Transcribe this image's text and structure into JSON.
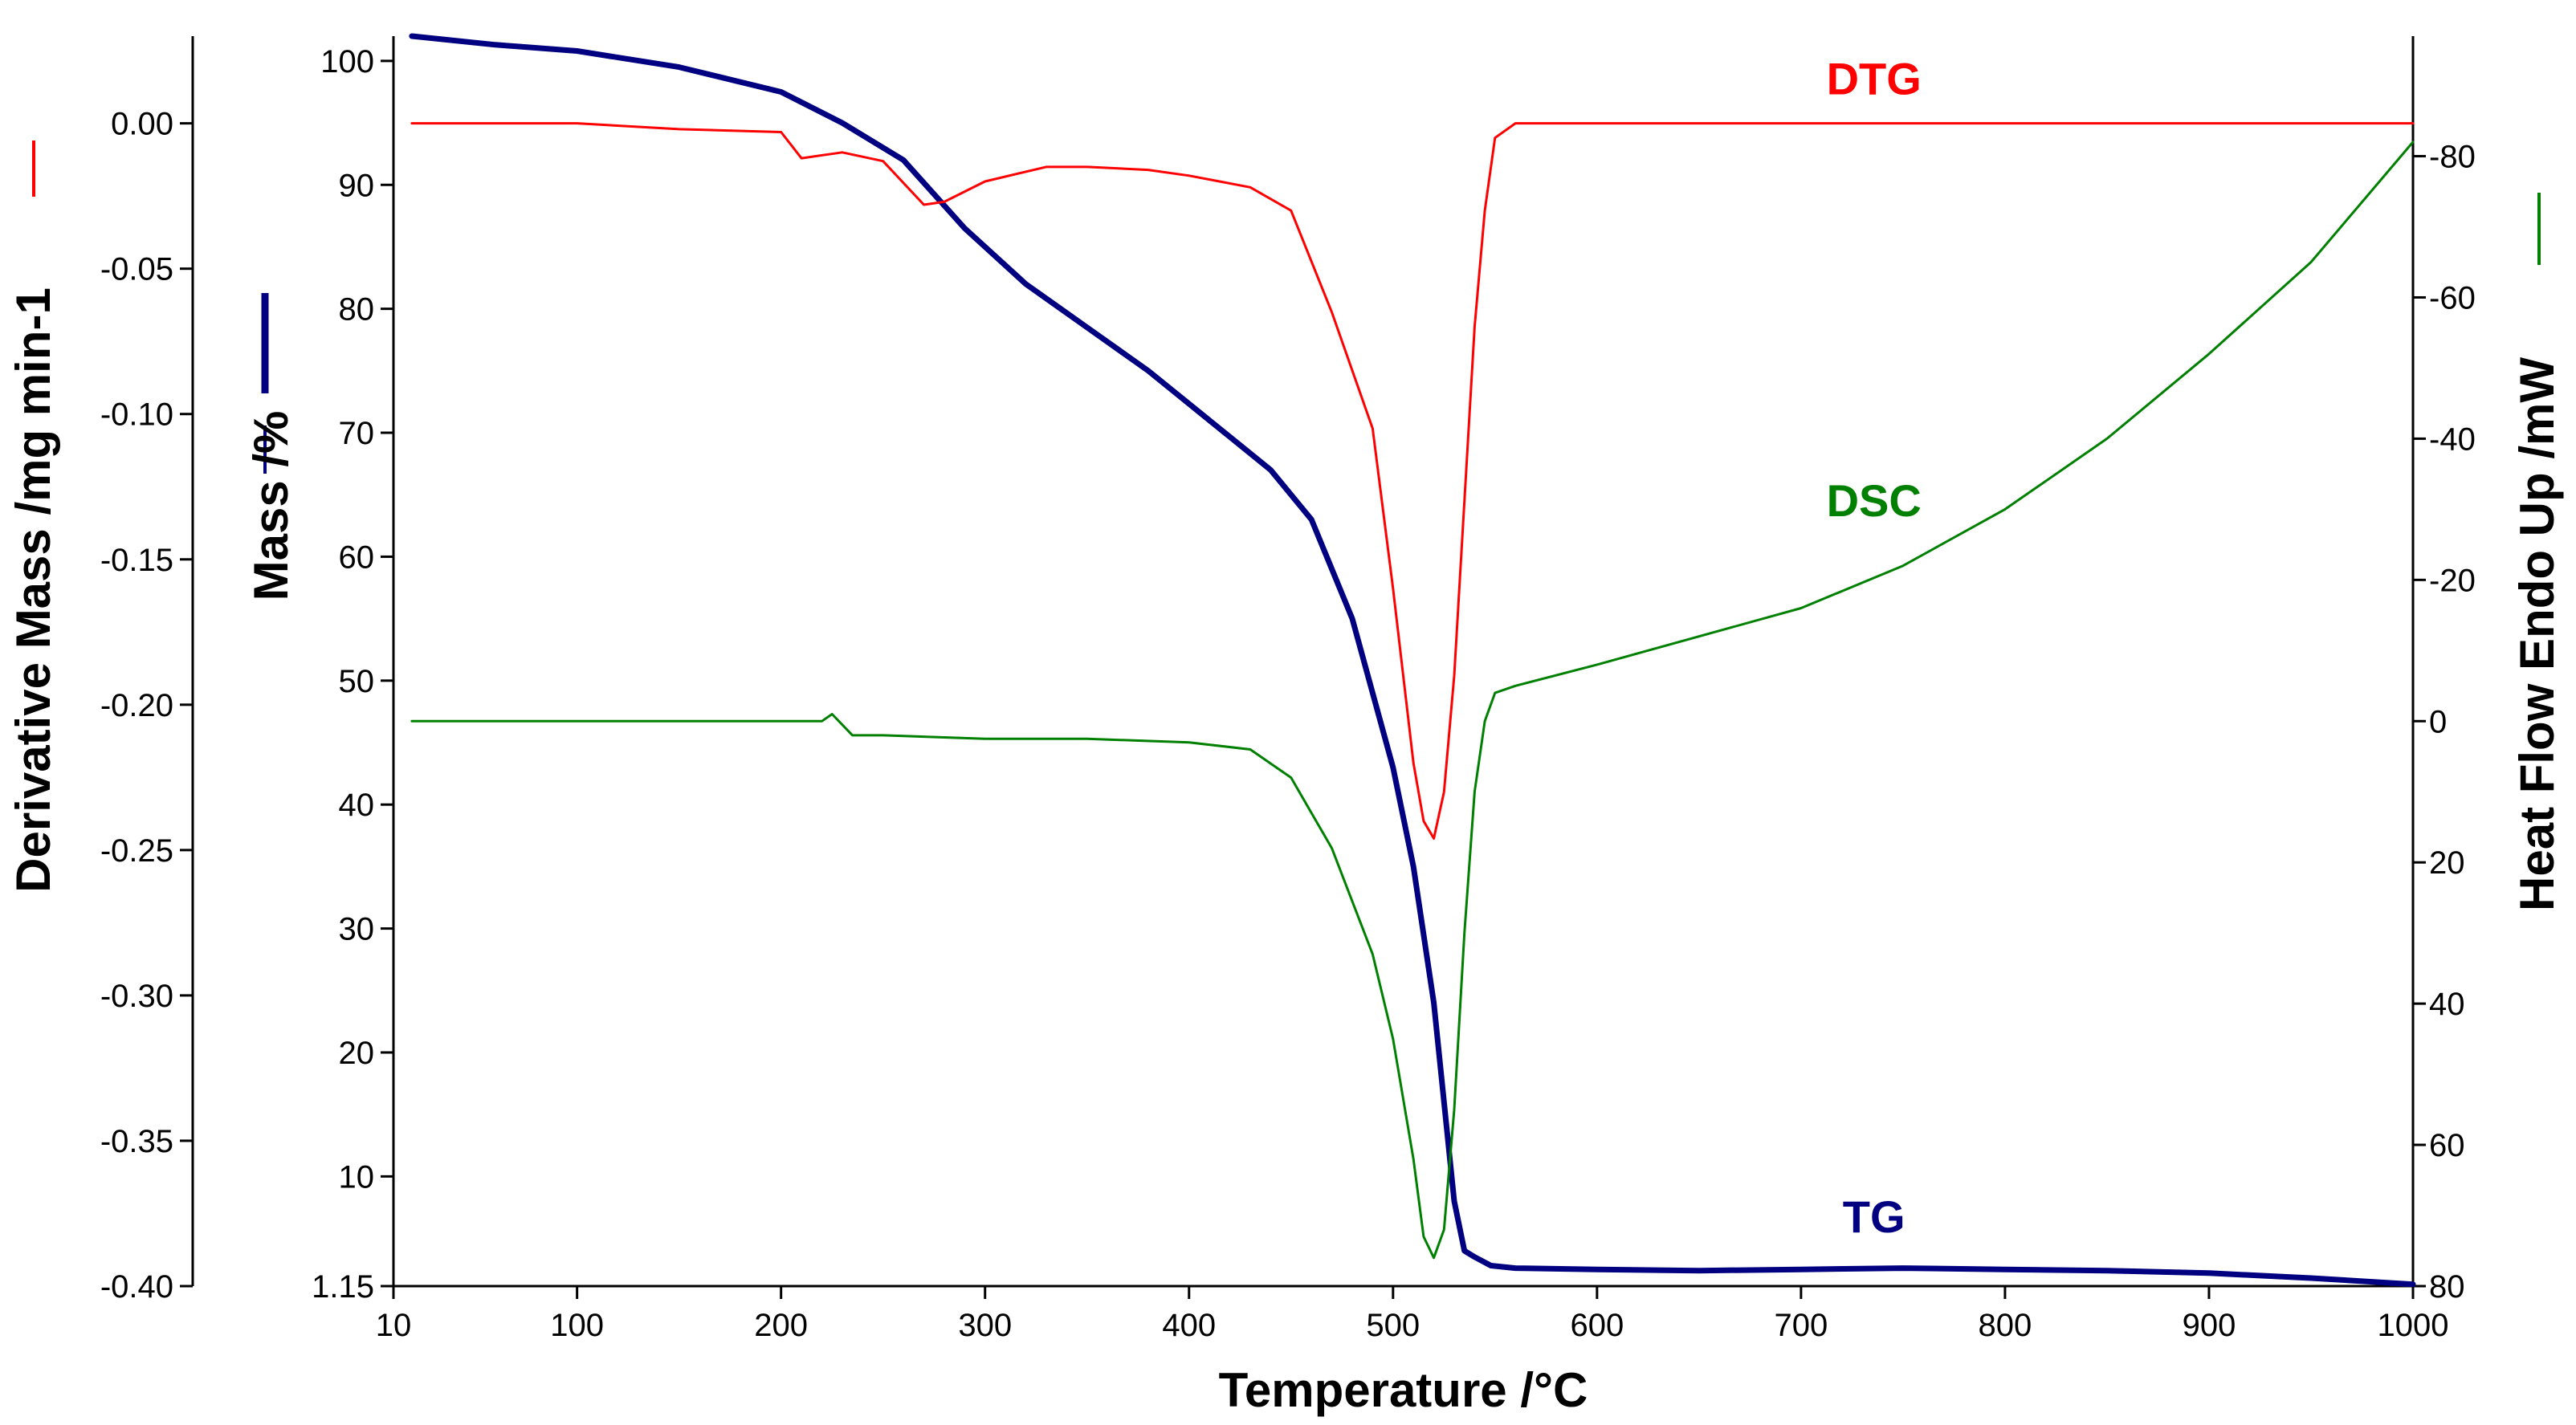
{
  "chart_data": {
    "type": "line",
    "title": "",
    "xlabel": "Temperature /°C",
    "xlim": [
      10,
      1000
    ],
    "x_ticks": [
      "10",
      "100",
      "200",
      "300",
      "400",
      "500",
      "600",
      "700",
      "800",
      "900",
      "1000"
    ],
    "axes": {
      "mass": {
        "label": "Mass /%",
        "ylim": [
          1.15,
          102
        ],
        "ticks": [
          "1.15",
          "10",
          "20",
          "30",
          "40",
          "50",
          "60",
          "70",
          "80",
          "90",
          "100"
        ],
        "color": "#000080"
      },
      "derivative": {
        "label": "Derivative Mass /mg min-1",
        "ylim": [
          -0.4,
          0.03
        ],
        "ticks": [
          "0.00",
          "-0.05",
          "-0.10",
          "-0.15",
          "-0.20",
          "-0.25",
          "-0.30",
          "-0.35",
          "-0.40"
        ],
        "color": "#ff0000"
      },
      "heatflow": {
        "label": "Heat Flow Endo Up /mW",
        "ylim": [
          80,
          -97
        ],
        "ticks": [
          "-80",
          "-60",
          "-40",
          "-20",
          "0",
          "20",
          "40",
          "60",
          "80"
        ],
        "color": "#008000"
      }
    },
    "series": [
      {
        "name": "TG",
        "axis": "mass",
        "color": "#000080",
        "x": [
          19,
          60,
          100,
          150,
          200,
          230,
          260,
          290,
          320,
          350,
          380,
          410,
          440,
          460,
          480,
          500,
          510,
          520,
          525,
          530,
          535,
          540,
          548,
          560,
          600,
          650,
          700,
          750,
          800,
          850,
          900,
          950,
          1000
        ],
        "y": [
          102,
          101.3,
          100.8,
          99.5,
          97.5,
          95,
          92,
          86.5,
          82,
          78.5,
          75,
          71,
          67,
          63,
          55,
          43,
          35,
          24,
          16,
          8,
          4,
          3.5,
          2.8,
          2.6,
          2.5,
          2.4,
          2.5,
          2.6,
          2.5,
          2.4,
          2.2,
          1.8,
          1.3
        ]
      },
      {
        "name": "DTG",
        "axis": "derivative",
        "color": "#ff0000",
        "x": [
          19,
          50,
          100,
          150,
          200,
          210,
          230,
          250,
          270,
          280,
          300,
          330,
          350,
          380,
          400,
          430,
          450,
          470,
          490,
          500,
          510,
          515,
          520,
          525,
          530,
          535,
          540,
          545,
          550,
          560,
          600,
          650,
          700,
          750,
          800,
          850,
          900,
          950,
          1000
        ],
        "y": [
          0,
          0,
          0,
          -0.002,
          -0.003,
          -0.012,
          -0.01,
          -0.013,
          -0.028,
          -0.027,
          -0.02,
          -0.015,
          -0.015,
          -0.016,
          -0.018,
          -0.022,
          -0.03,
          -0.065,
          -0.105,
          -0.16,
          -0.22,
          -0.24,
          -0.246,
          -0.23,
          -0.19,
          -0.13,
          -0.07,
          -0.03,
          -0.005,
          0,
          0,
          0,
          0,
          0,
          0,
          0,
          0,
          0,
          0
        ]
      },
      {
        "name": "DSC",
        "axis": "heatflow",
        "color": "#008000",
        "x": [
          19,
          100,
          200,
          220,
          225,
          235,
          250,
          300,
          350,
          400,
          430,
          450,
          470,
          490,
          500,
          510,
          515,
          520,
          525,
          530,
          535,
          540,
          545,
          550,
          560,
          600,
          650,
          700,
          750,
          800,
          850,
          900,
          950,
          1000
        ],
        "y": [
          0,
          0,
          0,
          0,
          -1,
          2,
          2,
          2.5,
          2.5,
          3,
          4,
          8,
          18,
          33,
          45,
          62,
          73,
          76,
          72,
          55,
          30,
          10,
          0,
          -4,
          -5,
          -8,
          -12,
          -16,
          -22,
          -30,
          -40,
          -52,
          -65,
          -82
        ]
      }
    ],
    "annotations": [
      {
        "text": "DTG",
        "color": "#ff0000",
        "x": 720,
        "axis": "derivative",
        "y": 0.01
      },
      {
        "text": "DSC",
        "color": "#008000",
        "x": 720,
        "axis": "heatflow",
        "y": -29
      },
      {
        "text": "TG",
        "color": "#000080",
        "x": 720,
        "axis": "mass",
        "y": 5.5
      }
    ]
  }
}
